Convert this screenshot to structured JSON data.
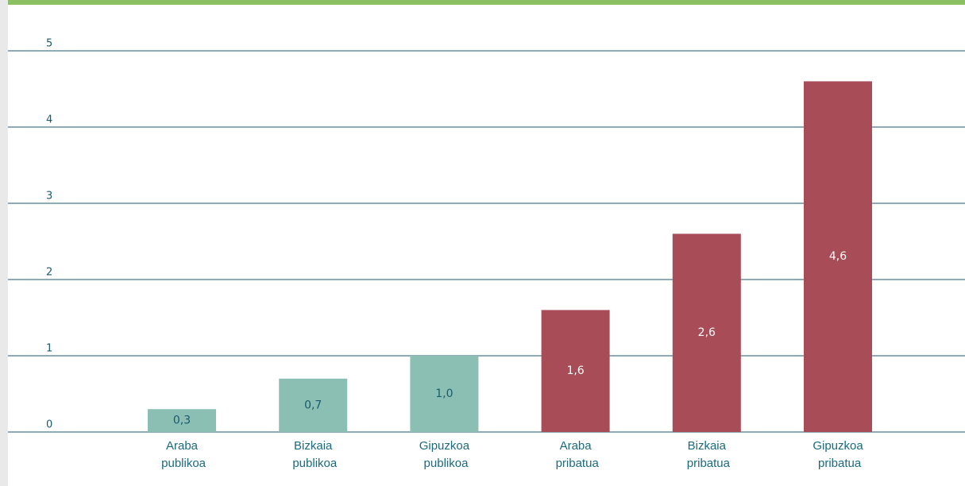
{
  "chart_data": {
    "type": "bar",
    "categories": [
      "Araba publikoa",
      "Bizkaia publikoa",
      "Gipuzkoa publikoa",
      "Araba pribatua",
      "Bizkaia pribatua",
      "Gipuzkoa pribatua"
    ],
    "values": [
      0.3,
      0.7,
      1.0,
      1.6,
      2.6,
      4.6
    ],
    "value_labels": [
      "0,3",
      "0,7",
      "1,0",
      "1,6",
      "2,6",
      "4,6"
    ],
    "colors": [
      "#8bbfb3",
      "#8bbfb3",
      "#8bbfb3",
      "#a84d57",
      "#a84d57",
      "#a84d57"
    ],
    "ylim": [
      0,
      5
    ],
    "yticks": [
      0,
      1,
      2,
      3,
      4,
      5
    ],
    "grid": true
  }
}
